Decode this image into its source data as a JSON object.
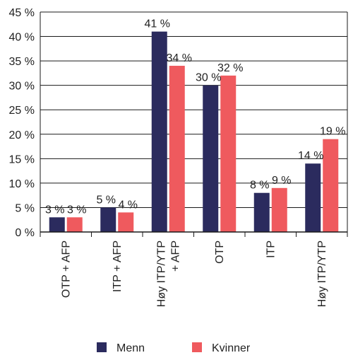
{
  "chart_data": {
    "type": "bar",
    "title": "",
    "xlabel": "",
    "ylabel": "",
    "ylim": [
      0,
      45
    ],
    "yticks": [
      {
        "value": 0,
        "label": "0 %"
      },
      {
        "value": 5,
        "label": "5 %"
      },
      {
        "value": 10,
        "label": "10 %"
      },
      {
        "value": 15,
        "label": "15 %"
      },
      {
        "value": 20,
        "label": "20 %"
      },
      {
        "value": 25,
        "label": "25 %"
      },
      {
        "value": 30,
        "label": "30 %"
      },
      {
        "value": 35,
        "label": "35 %"
      },
      {
        "value": 40,
        "label": "40 %"
      },
      {
        "value": 45,
        "label": "45 %"
      }
    ],
    "grid": true,
    "legend_position": "bottom",
    "categories": [
      [
        "OTP + AFP"
      ],
      [
        "ITP + AFP"
      ],
      [
        "Høy ITP/YTP",
        "+ AFP"
      ],
      [
        "OTP"
      ],
      [
        "ITP"
      ],
      [
        "Høy ITP/YTP"
      ]
    ],
    "series": [
      {
        "name": "Menn",
        "color": "#2b2b5e",
        "values": [
          3,
          5,
          41,
          30,
          8,
          14
        ],
        "labels": [
          "3 %",
          "5 %",
          "41 %",
          "30 %",
          "8 %",
          "14 %"
        ]
      },
      {
        "name": "Kvinner",
        "color": "#ef5a5e",
        "values": [
          3,
          4,
          34,
          32,
          9,
          19
        ],
        "labels": [
          "3 %",
          "4 %",
          "34 %",
          "32 %",
          "9 %",
          "19 %"
        ]
      }
    ]
  }
}
